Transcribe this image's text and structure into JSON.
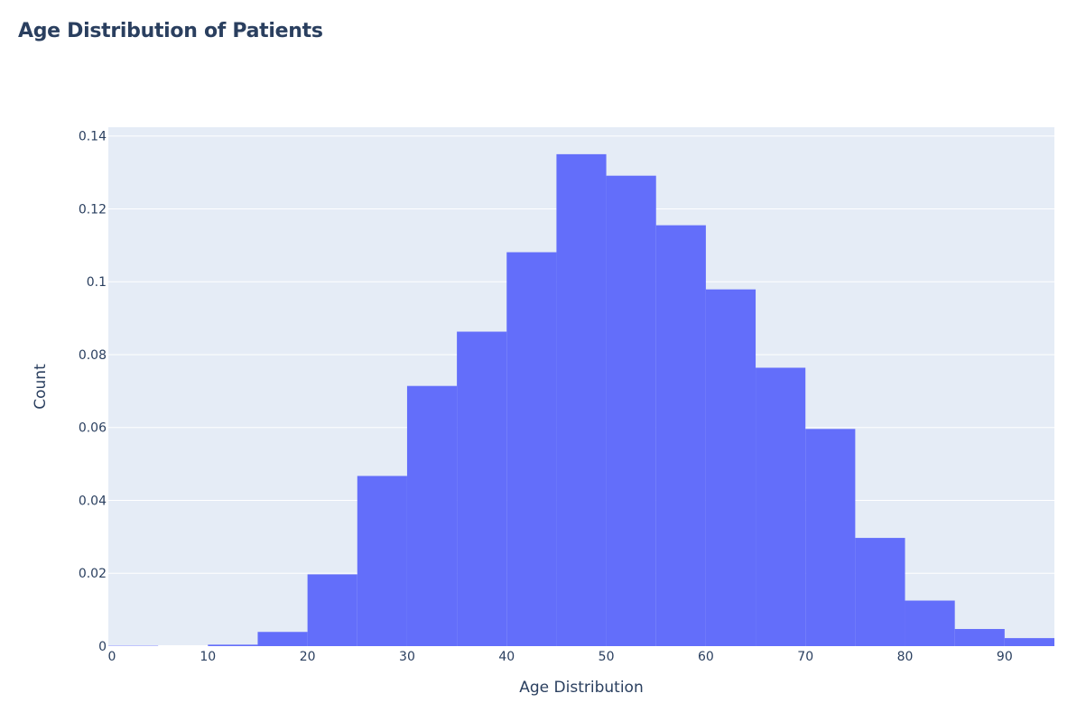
{
  "chart_data": {
    "type": "bar",
    "title": "Age Distribution of Patients",
    "xlabel": "Age Distribution",
    "ylabel": "Count",
    "bin_width": 5,
    "bins": [
      {
        "start": 0,
        "end": 5,
        "value": 0.0001
      },
      {
        "start": 5,
        "end": 10,
        "value": 0.0
      },
      {
        "start": 10,
        "end": 15,
        "value": 0.0004
      },
      {
        "start": 15,
        "end": 20,
        "value": 0.0039
      },
      {
        "start": 20,
        "end": 25,
        "value": 0.0197
      },
      {
        "start": 25,
        "end": 30,
        "value": 0.0467
      },
      {
        "start": 30,
        "end": 35,
        "value": 0.0714
      },
      {
        "start": 35,
        "end": 40,
        "value": 0.0863
      },
      {
        "start": 40,
        "end": 45,
        "value": 0.1081
      },
      {
        "start": 45,
        "end": 50,
        "value": 0.135
      },
      {
        "start": 50,
        "end": 55,
        "value": 0.1291
      },
      {
        "start": 55,
        "end": 60,
        "value": 0.1155
      },
      {
        "start": 60,
        "end": 65,
        "value": 0.0979
      },
      {
        "start": 65,
        "end": 70,
        "value": 0.0764
      },
      {
        "start": 70,
        "end": 75,
        "value": 0.0596
      },
      {
        "start": 75,
        "end": 80,
        "value": 0.0297
      },
      {
        "start": 80,
        "end": 85,
        "value": 0.0125
      },
      {
        "start": 85,
        "end": 90,
        "value": 0.0047
      },
      {
        "start": 90,
        "end": 95,
        "value": 0.0022
      }
    ],
    "xlim": [
      0,
      95
    ],
    "ylim": [
      0,
      0.1424
    ],
    "x_ticks": [
      {
        "value": 0,
        "label": "0"
      },
      {
        "value": 10,
        "label": "10"
      },
      {
        "value": 20,
        "label": "20"
      },
      {
        "value": 30,
        "label": "30"
      },
      {
        "value": 40,
        "label": "40"
      },
      {
        "value": 50,
        "label": "50"
      },
      {
        "value": 60,
        "label": "60"
      },
      {
        "value": 70,
        "label": "70"
      },
      {
        "value": 80,
        "label": "80"
      },
      {
        "value": 90,
        "label": "90"
      }
    ],
    "y_ticks": [
      {
        "value": 0,
        "label": "0"
      },
      {
        "value": 0.02,
        "label": "0.02"
      },
      {
        "value": 0.04,
        "label": "0.04"
      },
      {
        "value": 0.06,
        "label": "0.06"
      },
      {
        "value": 0.08,
        "label": "0.08"
      },
      {
        "value": 0.1,
        "label": "0.1"
      },
      {
        "value": 0.12,
        "label": "0.12"
      },
      {
        "value": 0.14,
        "label": "0.14"
      }
    ],
    "grid": true,
    "colors": {
      "bar": "#636efa",
      "plot_background": "#e5ecf6",
      "gridline": "#ffffff",
      "text": "#2a3f5f"
    }
  }
}
